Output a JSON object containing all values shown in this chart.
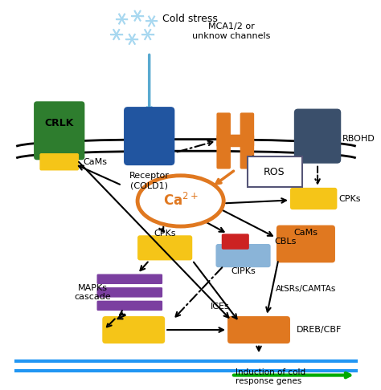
{
  "bg_color": "#ffffff",
  "snowflake_color": "#a8d8f0",
  "arrow_blue": "#5aaad0",
  "cold_stress_text": "Cold stress",
  "mca_text": "MCA1/2 or\nunknow channels",
  "crlk_text": "CRLK",
  "cams_text1": "CaMs",
  "receptor_text": "Receptor\n(COLD1)",
  "rbohd_text": "RBOHD",
  "ros_text": "ROS",
  "cpks_text1": "CPKs",
  "cpks_text2": "CPKs",
  "cams_text2": "CaMs",
  "cbls_text": "CBLs",
  "cipks_text": "CIPKs",
  "mapks_text": "MAPKs\ncascade",
  "ices_text": "ICEs",
  "dreb_text": "DREB/CBF",
  "atsrs_text": "AtSRs/CAMTAs",
  "induction_text": "Induction of cold\nresponse genes",
  "colors": {
    "green_box": "#2e7d2e",
    "blue_box": "#2155a0",
    "orange_channel": "#e07820",
    "dark_slate_box": "#3a4f6b",
    "yellow_box": "#f5c518",
    "yellow_box2": "#f5c518",
    "purple_box": "#7b3fa0",
    "red_box": "#cc2222",
    "light_blue_box": "#8ab4d8",
    "orange_box2": "#e07820",
    "orange_box3": "#e07820",
    "blue_line": "#2196F3",
    "green_arrow": "#00aa00"
  }
}
